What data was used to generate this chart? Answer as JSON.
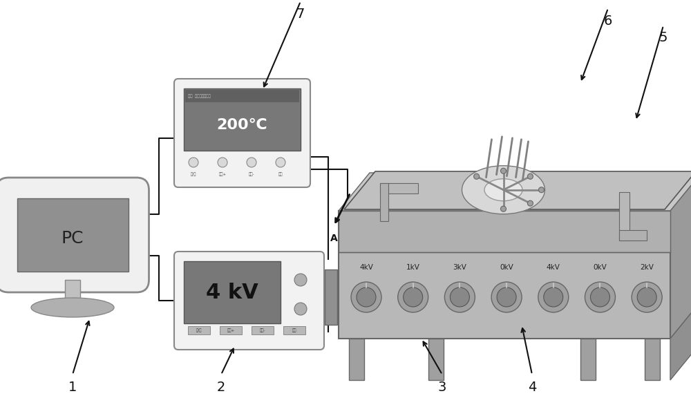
{
  "background_color": "#ffffff",
  "figure_width": 10.0,
  "figure_height": 6.02,
  "colors": {
    "light_gray": "#e0e0e0",
    "medium_gray": "#b8b8b8",
    "dark_gray": "#888888",
    "darker_gray": "#707070",
    "screen_gray": "#909090",
    "screen_dark": "#787878",
    "box_bg": "#f0f0f0",
    "platform_front": "#b0b0b0",
    "platform_top": "#c8c8c8",
    "platform_side": "#989898",
    "leg_color": "#a8a8a8",
    "knob_color": "#989898",
    "text_dark": "#111111",
    "white": "#ffffff",
    "line_color": "#111111",
    "arm_color": "#909090"
  },
  "knob_labels": [
    "4kV",
    "1kV",
    "3kV",
    "0kV",
    "4kV",
    "0kV",
    "2kV"
  ],
  "temp_btn_labels": [
    "开/关",
    "温度+",
    "温度-",
    "模式"
  ],
  "volt_btn_labels": [
    "开/关",
    "电压+",
    "电压-",
    "模式"
  ]
}
